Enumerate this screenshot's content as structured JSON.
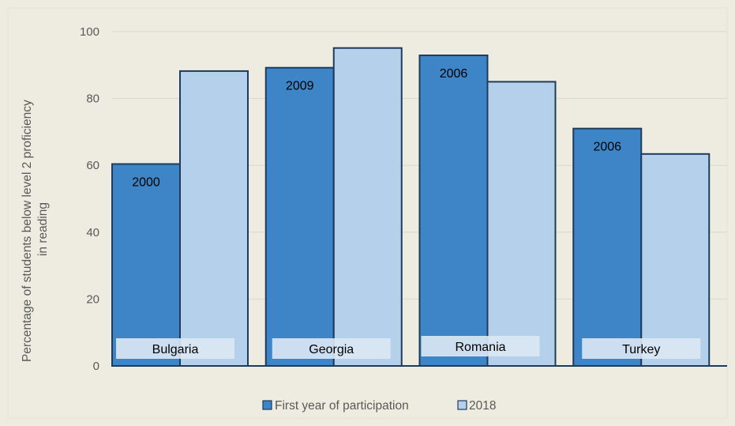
{
  "chart_data": {
    "type": "bar",
    "categories": [
      "Bulgaria",
      "Georgia",
      "Romania",
      "Turkey"
    ],
    "series": [
      {
        "name": "First year of participation",
        "values": [
          60.4,
          89.2,
          92.9,
          71.0
        ],
        "color": "#3d85c6"
      },
      {
        "name": "2018",
        "values": [
          88.2,
          95.1,
          85.0,
          63.4
        ],
        "color": "#b4d0ea"
      }
    ],
    "first_year_labels": [
      "2000",
      "2009",
      "2006",
      "2006"
    ],
    "title": "",
    "xlabel": "",
    "ylabel": [
      "Percentage of students below level 2 proficiency",
      "in reading"
    ],
    "ylim": [
      0,
      100
    ],
    "yticks": [
      0,
      20,
      40,
      60,
      80,
      100
    ],
    "grid": true,
    "legend": "bottom",
    "colors": {
      "background": "#eeece1",
      "border": "#1f3b5c",
      "grid": "#d9d7cc",
      "label_box": "#dce8f4"
    }
  }
}
